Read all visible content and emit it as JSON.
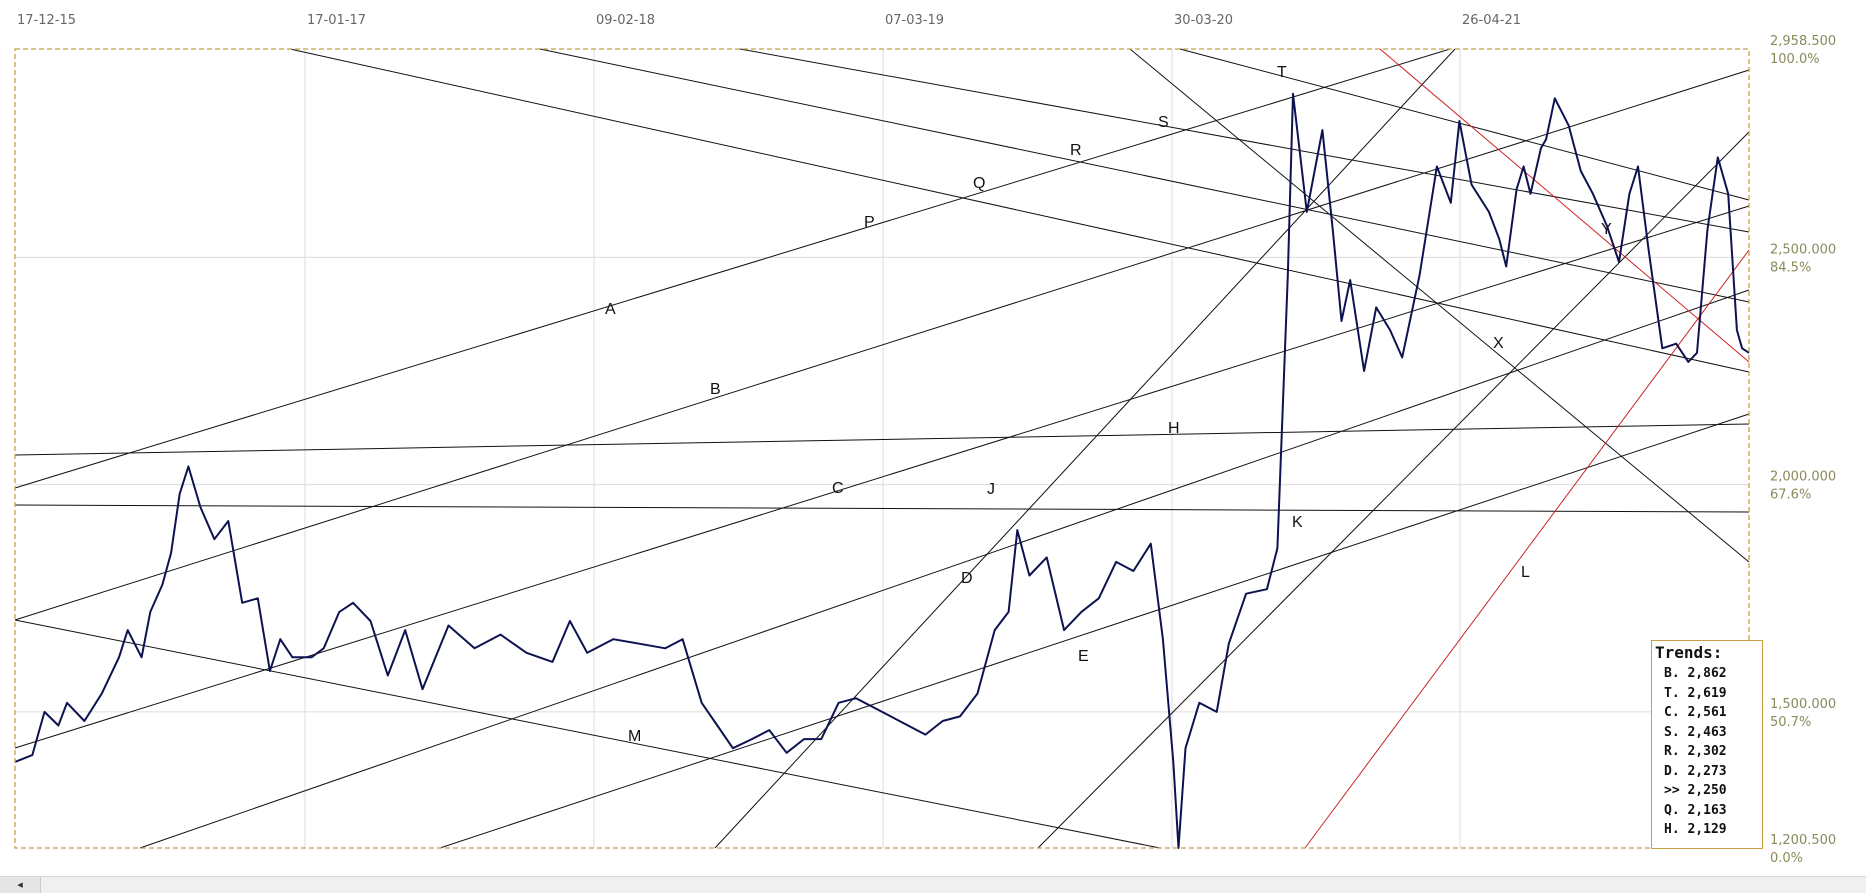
{
  "chart_data": {
    "type": "line",
    "x_ticks": [
      "17-12-15",
      "17-01-17",
      "09-02-18",
      "07-03-19",
      "30-03-20",
      "26-04-21"
    ],
    "y_ticks": [
      {
        "value": 2958.5,
        "label": "2,958.500",
        "pct": "100.0%"
      },
      {
        "value": 2500.0,
        "label": "2,500.000",
        "pct": "84.5%"
      },
      {
        "value": 2000.0,
        "label": "2,000.000",
        "pct": "67.6%"
      },
      {
        "value": 1500.0,
        "label": "1,500.000",
        "pct": "50.7%"
      },
      {
        "value": 1200.5,
        "label": "1,200.500",
        "pct": "0.0%"
      }
    ],
    "ylim": [
      1200.5,
      2958.5
    ],
    "x_range_index": [
      0,
      100
    ],
    "grid": true,
    "series": [
      {
        "color": "#0d1250",
        "points": [
          [
            0,
            1390
          ],
          [
            1,
            1405
          ],
          [
            1.7,
            1500
          ],
          [
            2.5,
            1470
          ],
          [
            3,
            1520
          ],
          [
            4,
            1480
          ],
          [
            5,
            1540
          ],
          [
            6,
            1620
          ],
          [
            6.5,
            1680
          ],
          [
            7.3,
            1620
          ],
          [
            7.8,
            1720
          ],
          [
            8.5,
            1780
          ],
          [
            9,
            1850
          ],
          [
            9.5,
            1980
          ],
          [
            10,
            2040
          ],
          [
            10.7,
            1950
          ],
          [
            11.5,
            1880
          ],
          [
            12.3,
            1920
          ],
          [
            13.1,
            1740
          ],
          [
            14,
            1750
          ],
          [
            14.7,
            1590
          ],
          [
            15.3,
            1660
          ],
          [
            16,
            1620
          ],
          [
            17.1,
            1620
          ],
          [
            17.8,
            1640
          ],
          [
            18.7,
            1720
          ],
          [
            19.5,
            1740
          ],
          [
            20.5,
            1700
          ],
          [
            21.5,
            1580
          ],
          [
            22.5,
            1680
          ],
          [
            23.5,
            1550
          ],
          [
            25,
            1690
          ],
          [
            26.5,
            1640
          ],
          [
            28,
            1670
          ],
          [
            29.5,
            1630
          ],
          [
            31,
            1610
          ],
          [
            32,
            1700
          ],
          [
            33,
            1630
          ],
          [
            34.5,
            1660
          ],
          [
            36,
            1650
          ],
          [
            37.5,
            1640
          ],
          [
            38.5,
            1660
          ],
          [
            39.6,
            1520
          ],
          [
            40.5,
            1470
          ],
          [
            41.4,
            1420
          ],
          [
            42.5,
            1440
          ],
          [
            43.5,
            1460
          ],
          [
            44.5,
            1410
          ],
          [
            45.5,
            1440
          ],
          [
            46.5,
            1440
          ],
          [
            47.5,
            1520
          ],
          [
            48.5,
            1530
          ],
          [
            49.5,
            1510
          ],
          [
            50.5,
            1490
          ],
          [
            51.5,
            1470
          ],
          [
            52.5,
            1450
          ],
          [
            53.5,
            1480
          ],
          [
            54.5,
            1490
          ],
          [
            55.5,
            1540
          ],
          [
            56.5,
            1680
          ],
          [
            57.3,
            1720
          ],
          [
            57.8,
            1900
          ],
          [
            58.5,
            1800
          ],
          [
            59.5,
            1840
          ],
          [
            60.5,
            1680
          ],
          [
            61.5,
            1720
          ],
          [
            62.5,
            1750
          ],
          [
            63.5,
            1830
          ],
          [
            64.5,
            1810
          ],
          [
            65.5,
            1870
          ],
          [
            66.2,
            1660
          ],
          [
            66.8,
            1390
          ],
          [
            67.1,
            1200.5
          ],
          [
            67.5,
            1420
          ],
          [
            68.3,
            1520
          ],
          [
            69.3,
            1500
          ],
          [
            70,
            1650
          ],
          [
            71,
            1760
          ],
          [
            72.2,
            1770
          ],
          [
            72.8,
            1860
          ],
          [
            73.4,
            2460
          ],
          [
            73.7,
            2860
          ],
          [
            74.5,
            2600
          ],
          [
            75.4,
            2780
          ],
          [
            76,
            2560
          ],
          [
            76.5,
            2360
          ],
          [
            77,
            2450
          ],
          [
            77.8,
            2250
          ],
          [
            78.5,
            2390
          ],
          [
            79.3,
            2340
          ],
          [
            80,
            2280
          ],
          [
            81,
            2460
          ],
          [
            82,
            2700
          ],
          [
            82.8,
            2620
          ],
          [
            83.3,
            2800
          ],
          [
            84,
            2660
          ],
          [
            85,
            2600
          ],
          [
            85.6,
            2540
          ],
          [
            86,
            2480
          ],
          [
            86.6,
            2650
          ],
          [
            87,
            2700
          ],
          [
            87.4,
            2640
          ],
          [
            88,
            2740
          ],
          [
            88.3,
            2760
          ],
          [
            88.8,
            2850
          ],
          [
            89.6,
            2790
          ],
          [
            90.3,
            2690
          ],
          [
            91,
            2640
          ],
          [
            91.8,
            2570
          ],
          [
            92.5,
            2490
          ],
          [
            93.1,
            2640
          ],
          [
            93.6,
            2700
          ],
          [
            94.2,
            2520
          ],
          [
            95,
            2300
          ],
          [
            95.8,
            2310
          ],
          [
            96.5,
            2270
          ],
          [
            97,
            2290
          ],
          [
            97.6,
            2560
          ],
          [
            98.2,
            2720
          ],
          [
            98.8,
            2640
          ],
          [
            99.3,
            2340
          ],
          [
            99.6,
            2300
          ],
          [
            100,
            2290
          ]
        ]
      }
    ],
    "trendline_labels": [
      {
        "text": "A",
        "color": "#111111"
      },
      {
        "text": "B",
        "color": "#111111"
      },
      {
        "text": "C",
        "color": "#111111"
      },
      {
        "text": "D",
        "color": "#111111"
      },
      {
        "text": "E",
        "color": "#111111"
      },
      {
        "text": "H",
        "color": "#111111"
      },
      {
        "text": "J",
        "color": "#111111"
      },
      {
        "text": "K",
        "color": "#111111"
      },
      {
        "text": "M",
        "color": "#111111"
      },
      {
        "text": "P",
        "color": "#111111"
      },
      {
        "text": "Q",
        "color": "#111111"
      },
      {
        "text": "R",
        "color": "#111111"
      },
      {
        "text": "S",
        "color": "#111111"
      },
      {
        "text": "T",
        "color": "#111111"
      },
      {
        "text": "X",
        "color": "#111111"
      },
      {
        "text": "Y",
        "color": "#cc2222"
      },
      {
        "text": "L",
        "color": "#cc2222"
      }
    ],
    "colors": {
      "price": "#0d1250",
      "trend": "#111111",
      "trend_alt": "#cc2222",
      "border": "#c8a040",
      "grid": "#dcdcdc"
    }
  },
  "trends_panel": {
    "title": "Trends:",
    "rows": [
      "B. 2,862",
      "T. 2,619",
      "C. 2,561",
      "S. 2,463",
      "R. 2,302",
      "D. 2,273",
      ">> 2,250",
      "Q. 2,163",
      "H. 2,129"
    ]
  },
  "scrollbar": {
    "left_arrow": "◂"
  }
}
